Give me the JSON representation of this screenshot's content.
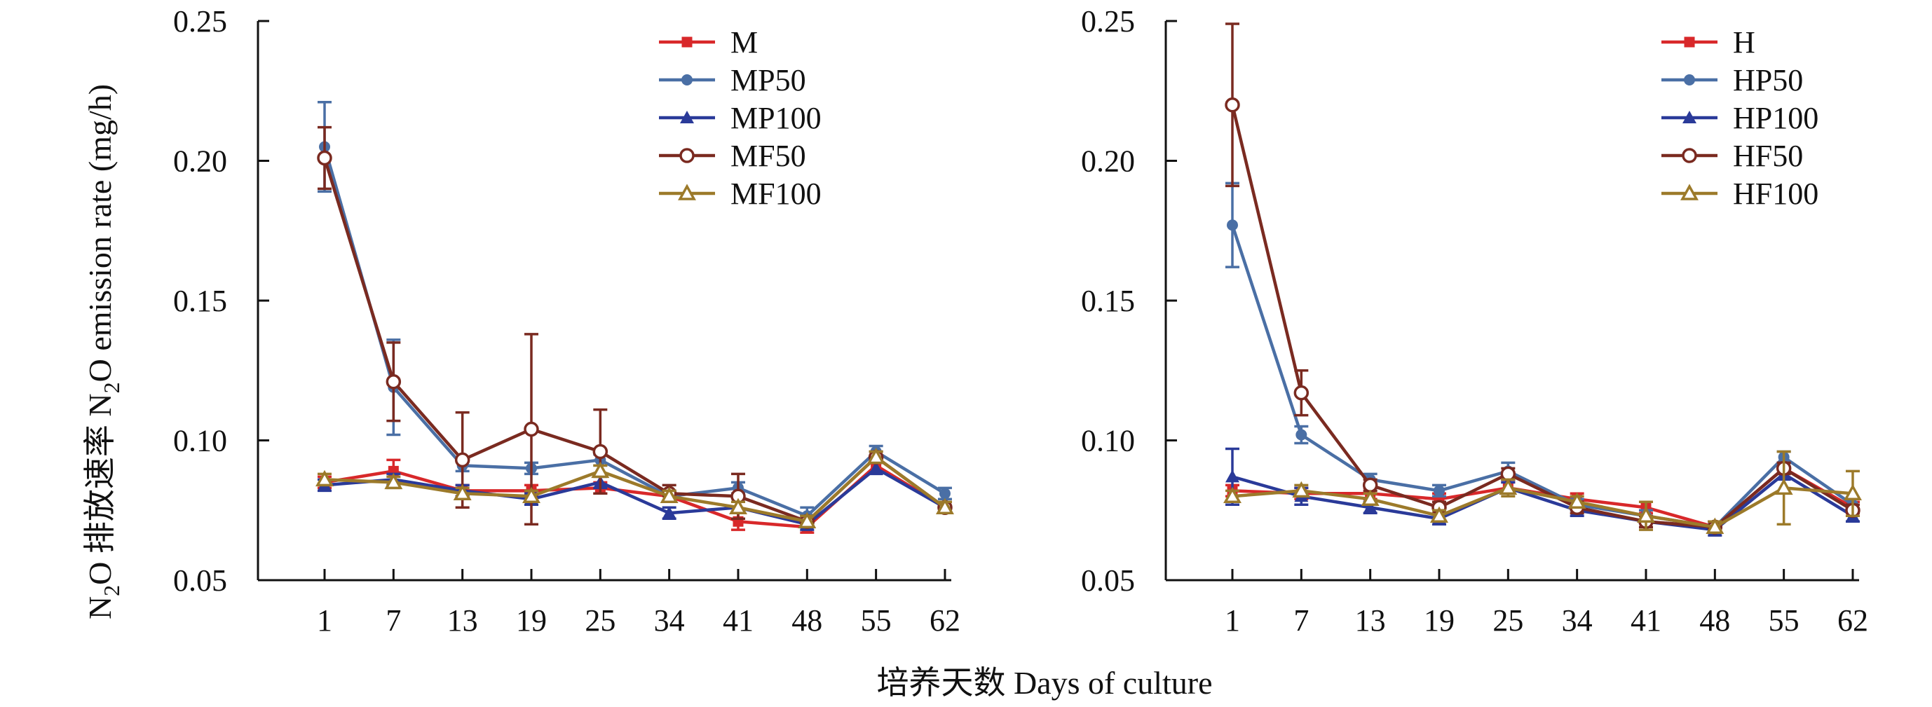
{
  "ylabel_parts": {
    "pre": "N",
    "sub1": "2",
    "mid": "O 排放速率 N",
    "sub2": "2",
    "post": "O emission rate (mg/h)"
  },
  "xlabel": "培养天数 Days of culture",
  "chart_data": [
    {
      "type": "line",
      "x": [
        1,
        7,
        13,
        19,
        25,
        34,
        41,
        48,
        55,
        62
      ],
      "ylim": [
        0.05,
        0.25
      ],
      "yticks": [
        "0.05",
        "0.10",
        "0.15",
        "0.20",
        "0.25"
      ],
      "xticks": [
        "1",
        "7",
        "13",
        "19",
        "25",
        "34",
        "41",
        "48",
        "55",
        "62"
      ],
      "legend_position": "top-right",
      "series": [
        {
          "name": "M",
          "color": "#d8282a",
          "marker": "square",
          "values": [
            0.085,
            0.089,
            0.082,
            0.082,
            0.083,
            0.08,
            0.071,
            0.069,
            0.091,
            0.076
          ],
          "errors": [
            0.002,
            0.004,
            0.002,
            0.002,
            0.002,
            0.002,
            0.003,
            0.002,
            0.002,
            0.002
          ]
        },
        {
          "name": "MP50",
          "color": "#4a6fa5",
          "marker": "dot",
          "values": [
            0.205,
            0.119,
            0.091,
            0.09,
            0.093,
            0.08,
            0.083,
            0.073,
            0.096,
            0.081
          ],
          "errors": [
            0.016,
            0.017,
            0.002,
            0.002,
            0.002,
            0.002,
            0.002,
            0.003,
            0.002,
            0.002
          ]
        },
        {
          "name": "MP100",
          "color": "#2a3a99",
          "marker": "triangle",
          "values": [
            0.084,
            0.086,
            0.082,
            0.079,
            0.085,
            0.074,
            0.076,
            0.07,
            0.09,
            0.076
          ],
          "errors": [
            0.002,
            0.002,
            0.002,
            0.002,
            0.002,
            0.002,
            0.002,
            0.002,
            0.002,
            0.002
          ]
        },
        {
          "name": "MF50",
          "color": "#7a2a20",
          "marker": "circle-open",
          "values": [
            0.201,
            0.121,
            0.093,
            0.104,
            0.096,
            0.081,
            0.08,
            0.071,
            0.094,
            0.076
          ],
          "errors": [
            0.011,
            0.014,
            0.017,
            0.034,
            0.015,
            0.003,
            0.008,
            0.002,
            0.002,
            0.002
          ]
        },
        {
          "name": "MF100",
          "color": "#9c7a2a",
          "marker": "triangle-open",
          "values": [
            0.086,
            0.085,
            0.081,
            0.08,
            0.089,
            0.08,
            0.076,
            0.071,
            0.094,
            0.076
          ],
          "errors": [
            0.002,
            0.002,
            0.002,
            0.002,
            0.002,
            0.002,
            0.002,
            0.002,
            0.002,
            0.002
          ]
        }
      ]
    },
    {
      "type": "line",
      "x": [
        1,
        7,
        13,
        19,
        25,
        34,
        41,
        48,
        55,
        62
      ],
      "ylim": [
        0.05,
        0.25
      ],
      "yticks": [
        "0.05",
        "0.10",
        "0.15",
        "0.20",
        "0.25"
      ],
      "xticks": [
        "1",
        "7",
        "13",
        "19",
        "25",
        "34",
        "41",
        "48",
        "55",
        "62"
      ],
      "legend_position": "top-right",
      "series": [
        {
          "name": "H",
          "color": "#d8282a",
          "marker": "square",
          "values": [
            0.082,
            0.081,
            0.081,
            0.079,
            0.083,
            0.079,
            0.076,
            0.069,
            0.09,
            0.076
          ],
          "errors": [
            0.002,
            0.002,
            0.002,
            0.002,
            0.002,
            0.002,
            0.002,
            0.002,
            0.002,
            0.002
          ]
        },
        {
          "name": "HP50",
          "color": "#4a6fa5",
          "marker": "dot",
          "values": [
            0.177,
            0.102,
            0.086,
            0.082,
            0.089,
            0.077,
            0.073,
            0.069,
            0.094,
            0.077
          ],
          "errors": [
            0.015,
            0.003,
            0.002,
            0.002,
            0.003,
            0.002,
            0.002,
            0.002,
            0.002,
            0.002
          ]
        },
        {
          "name": "HP100",
          "color": "#2a3a99",
          "marker": "triangle",
          "values": [
            0.087,
            0.08,
            0.076,
            0.072,
            0.083,
            0.075,
            0.071,
            0.068,
            0.088,
            0.073
          ],
          "errors": [
            0.01,
            0.003,
            0.002,
            0.002,
            0.002,
            0.002,
            0.002,
            0.002,
            0.002,
            0.002
          ]
        },
        {
          "name": "HF50",
          "color": "#7a2a20",
          "marker": "circle-open",
          "values": [
            0.22,
            0.117,
            0.084,
            0.076,
            0.088,
            0.076,
            0.071,
            0.069,
            0.09,
            0.075
          ],
          "errors": [
            0.029,
            0.008,
            0.002,
            0.002,
            0.002,
            0.002,
            0.002,
            0.002,
            0.002,
            0.002
          ]
        },
        {
          "name": "HF100",
          "color": "#9c7a2a",
          "marker": "triangle-open",
          "values": [
            0.08,
            0.082,
            0.079,
            0.073,
            0.083,
            0.078,
            0.073,
            0.069,
            0.083,
            0.081
          ],
          "errors": [
            0.002,
            0.002,
            0.002,
            0.002,
            0.003,
            0.002,
            0.005,
            0.002,
            0.013,
            0.008
          ]
        }
      ]
    }
  ]
}
